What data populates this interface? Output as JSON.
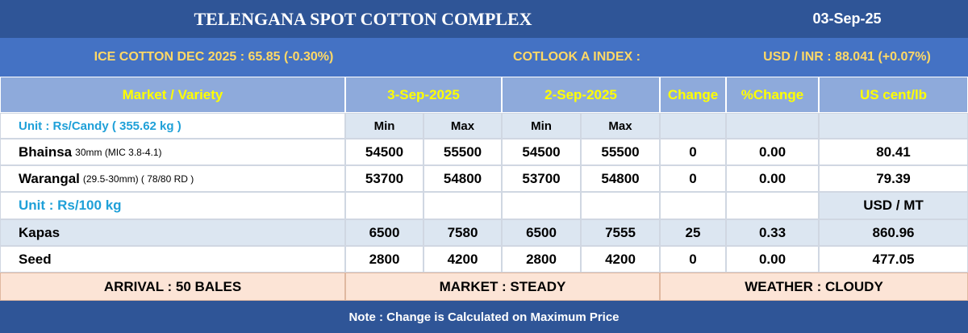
{
  "header": {
    "title": "TELENGANA SPOT COTTON COMPLEX",
    "date": "03-Sep-25"
  },
  "ticker": {
    "ice": "ICE COTTON DEC 2025 : 65.85 (-0.30%)",
    "cotlook": "COTLOOK A INDEX :",
    "usd_inr": "USD / INR : 88.041 (+0.07%)"
  },
  "table": {
    "columns": [
      "Market / Variety",
      "3-Sep-2025",
      "2-Sep-2025",
      "Change",
      "%Change",
      "US cent/lb"
    ],
    "unit_candy": "Unit : Rs/Candy ( 355.62 kg )",
    "subcolumns": [
      "Min",
      "Max",
      "Min",
      "Max"
    ],
    "rows": [
      {
        "name": "Bhainsa",
        "spec": "30mm (MIC 3.8-4.1)",
        "values": [
          "54500",
          "55500",
          "54500",
          "55500",
          "0",
          "0.00",
          "80.41"
        ]
      },
      {
        "name": "Warangal",
        "spec": "(29.5-30mm) ( 78/80 RD )",
        "values": [
          "53700",
          "54800",
          "53700",
          "54800",
          "0",
          "0.00",
          "79.39"
        ]
      }
    ],
    "unit_kg": "Unit : Rs/100 kg",
    "usd_mt": "USD / MT",
    "rows2": [
      {
        "name": "Kapas",
        "values": [
          "6500",
          "7580",
          "6500",
          "7555",
          "25",
          "0.33",
          "860.96"
        ]
      },
      {
        "name": "Seed",
        "values": [
          "2800",
          "4200",
          "2800",
          "4200",
          "0",
          "0.00",
          "477.05"
        ]
      }
    ]
  },
  "footer": {
    "arrival": "ARRIVAL : 50 BALES",
    "market": "MARKET : STEADY",
    "weather": "WEATHER : CLOUDY"
  },
  "note": "Note : Change is Calculated on Maximum Price"
}
